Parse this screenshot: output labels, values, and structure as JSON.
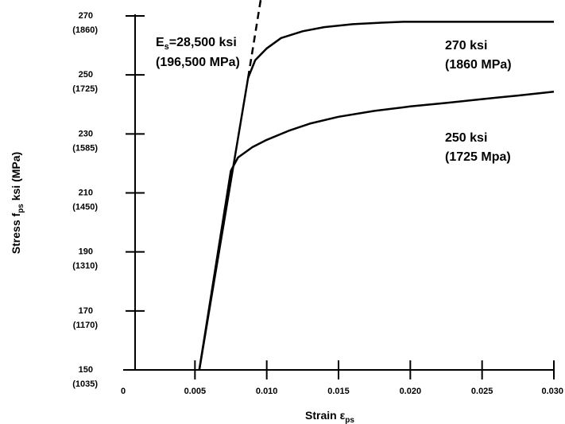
{
  "chart_data": {
    "type": "line",
    "title": "",
    "xlabel": {
      "main": "Strain ",
      "symbol": "ε",
      "sub": "ps"
    },
    "ylabel": {
      "main": "Stress f",
      "sub": "ps",
      "rest": " ksi (MPa)"
    },
    "xlim": [
      0,
      0.03
    ],
    "ylim": [
      150,
      270
    ],
    "x_ticks": [
      {
        "value": 0,
        "label": "0"
      },
      {
        "value": 0.005,
        "label": "0.005"
      },
      {
        "value": 0.01,
        "label": "0.010"
      },
      {
        "value": 0.015,
        "label": "0.015"
      },
      {
        "value": 0.02,
        "label": "0.020"
      },
      {
        "value": 0.025,
        "label": "0.025"
      },
      {
        "value": 0.03,
        "label": "0.030"
      }
    ],
    "y_ticks": [
      {
        "value": 150,
        "label": "150",
        "sub_label": "(1035)"
      },
      {
        "value": 170,
        "label": "170",
        "sub_label": "(1170)"
      },
      {
        "value": 190,
        "label": "190",
        "sub_label": "(1310)"
      },
      {
        "value": 210,
        "label": "210",
        "sub_label": "(1450)"
      },
      {
        "value": 230,
        "label": "230",
        "sub_label": "(1585)"
      },
      {
        "value": 250,
        "label": "250",
        "sub_label": "(1725)"
      },
      {
        "value": 270,
        "label": "270",
        "sub_label": "(1860)"
      }
    ],
    "grid": false,
    "series": [
      {
        "label_lines": [
          "270 ksi",
          "(1860 MPa)"
        ],
        "style": "solid",
        "x": [
          0.0053,
          0.0087,
          0.0092,
          0.01,
          0.011,
          0.0125,
          0.014,
          0.016,
          0.018,
          0.0195,
          0.022,
          0.025,
          0.028,
          0.03
        ],
        "y": [
          150,
          249,
          255,
          259,
          262.5,
          264.8,
          266.2,
          267.2,
          267.7,
          268.0,
          268.0,
          268.0,
          268.0,
          268.0
        ]
      },
      {
        "label_lines": [
          "250 ksi",
          "(1725 Mpa)"
        ],
        "style": "solid",
        "x": [
          0.0053,
          0.0075,
          0.008,
          0.009,
          0.01,
          0.0115,
          0.013,
          0.015,
          0.0175,
          0.02,
          0.0225,
          0.025,
          0.0275,
          0.03
        ],
        "y": [
          150,
          217.5,
          222,
          225.5,
          228,
          231,
          233.5,
          235.8,
          237.8,
          239.3,
          240.5,
          241.8,
          243.0,
          244.3
        ]
      },
      {
        "style": "dashed",
        "x": [
          0.0087,
          0.0097
        ],
        "y": [
          249,
          279
        ]
      }
    ],
    "annotations": [
      {
        "lines": [
          {
            "main": "E",
            "sub": "s",
            "rest": "=28,500 ksi"
          },
          {
            "main": "(196,500 MPa)"
          }
        ]
      }
    ]
  }
}
